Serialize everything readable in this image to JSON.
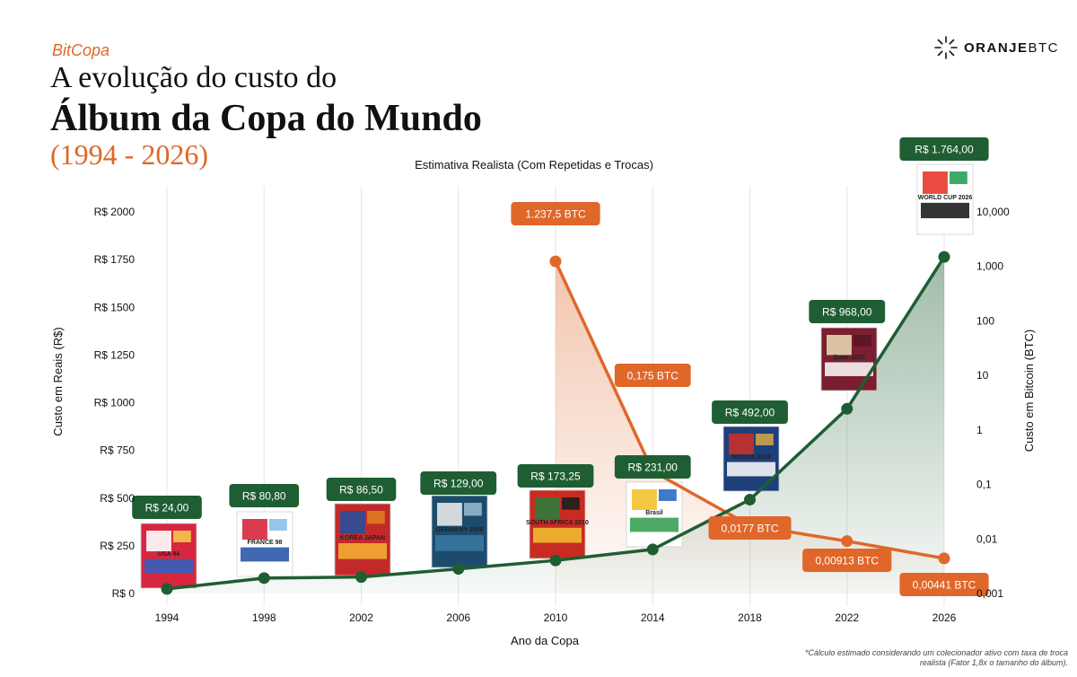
{
  "header": {
    "kicker": "BitCopa",
    "title_line1": "A evolução do custo do",
    "title_line2": "Álbum da Copa do Mundo",
    "title_line3": "(1994 - 2026)"
  },
  "brand": {
    "name_bold": "ORANJE",
    "name_light": "BTC",
    "logo_icon": "sunburst-icon"
  },
  "footnote": "*Cálculo estimado considerando um colecionador ativo com taxa de troca realista (Fator 1,8x o tamanho do álbum).",
  "colors": {
    "brl_line": "#1e5e32",
    "btc_line": "#e0672a",
    "brl_label_bg": "#1e5e32",
    "btc_label_bg": "#e0672a"
  },
  "chart_data": {
    "type": "line",
    "title": "Estimativa Realista (Com Repetidas e Trocas)",
    "xlabel": "Ano da Copa",
    "ylabel_left": "Custo em Reais (R$)",
    "ylabel_right": "Custo em Bitcoin (BTC)",
    "categories": [
      "1994",
      "1998",
      "2002",
      "2006",
      "2010",
      "2014",
      "2018",
      "2022",
      "2026"
    ],
    "y_left": {
      "scale": "linear",
      "range": [
        0,
        2000
      ],
      "ticks": [
        0,
        250,
        500,
        750,
        1000,
        1250,
        1500,
        1750,
        2000
      ],
      "tick_labels": [
        "R$ 0",
        "R$ 250",
        "R$ 500",
        "R$ 750",
        "R$ 1000",
        "R$ 1250",
        "R$ 1500",
        "R$ 1750",
        "R$ 2000"
      ]
    },
    "y_right": {
      "scale": "log",
      "range": [
        0.001,
        10000
      ],
      "ticks": [
        0.001,
        0.01,
        0.1,
        1,
        10,
        100,
        1000,
        10000
      ],
      "tick_labels": [
        "0,001",
        "0,01",
        "0,1",
        "1",
        "10",
        "100",
        "1,000",
        "10,000"
      ]
    },
    "grid": "vertical",
    "legend": "none",
    "series": [
      {
        "axis": "left",
        "x": [
          "1994",
          "1998",
          "2002",
          "2006",
          "2010",
          "2014",
          "2018",
          "2022",
          "2026"
        ],
        "values": [
          24.0,
          80.8,
          86.5,
          129.0,
          173.25,
          231.0,
          492.0,
          968.0,
          1764.0
        ],
        "labels": [
          "R$ 24,00",
          "R$ 80,80",
          "R$ 86,50",
          "R$ 129,00",
          "R$ 173,25",
          "R$ 231,00",
          "R$ 492,00",
          "R$ 968,00",
          "R$ 1.764,00"
        ]
      },
      {
        "axis": "right",
        "x": [
          "2010",
          "2014",
          "2018",
          "2022",
          "2026"
        ],
        "values": [
          1237.5,
          0.175,
          0.0177,
          0.00913,
          0.00441
        ],
        "labels": [
          "1.237,5 BTC",
          "0,175 BTC",
          "0,0177 BTC",
          "0,00913 BTC",
          "0,00441 BTC"
        ]
      }
    ]
  },
  "albums": [
    {
      "year": "1994",
      "title_text": "USA 94",
      "colors": [
        "#d7263d",
        "#2a63c6",
        "#ffffff",
        "#f5c84b"
      ]
    },
    {
      "year": "1998",
      "title_text": "FRANCE 98",
      "colors": [
        "#ffffff",
        "#1f4fa3",
        "#d7263d",
        "#8ac0e6"
      ]
    },
    {
      "year": "2002",
      "title_text": "KOREA JAPAN",
      "colors": [
        "#c22a2a",
        "#f4b531",
        "#2a4e9b",
        "#e07a1f"
      ]
    },
    {
      "year": "2006",
      "title_text": "GERMANY 2006",
      "colors": [
        "#1d4b6e",
        "#3b7aa4",
        "#e8e8e8",
        "#95b7cf"
      ]
    },
    {
      "year": "2010",
      "title_text": "SOUTH AFRICA 2010",
      "colors": [
        "#c82b22",
        "#f2c230",
        "#2f7a3a",
        "#1e1e1e"
      ]
    },
    {
      "year": "2014",
      "title_text": "Brasil",
      "colors": [
        "#ffffff",
        "#2d9b4a",
        "#f2c22f",
        "#2b6cc4"
      ]
    },
    {
      "year": "2018",
      "title_text": "RUSSIA 2018",
      "colors": [
        "#1d3f7a",
        "#ffffff",
        "#c8302a",
        "#cfa24d"
      ]
    },
    {
      "year": "2022",
      "title_text": "Qatar 2022",
      "colors": [
        "#7b1f30",
        "#ffffff",
        "#e7d5b0",
        "#5c1422"
      ]
    },
    {
      "year": "2026",
      "title_text": "WORLD CUP 2026",
      "colors": [
        "#ffffff",
        "#111111",
        "#e8372c",
        "#2aa05a"
      ]
    }
  ]
}
